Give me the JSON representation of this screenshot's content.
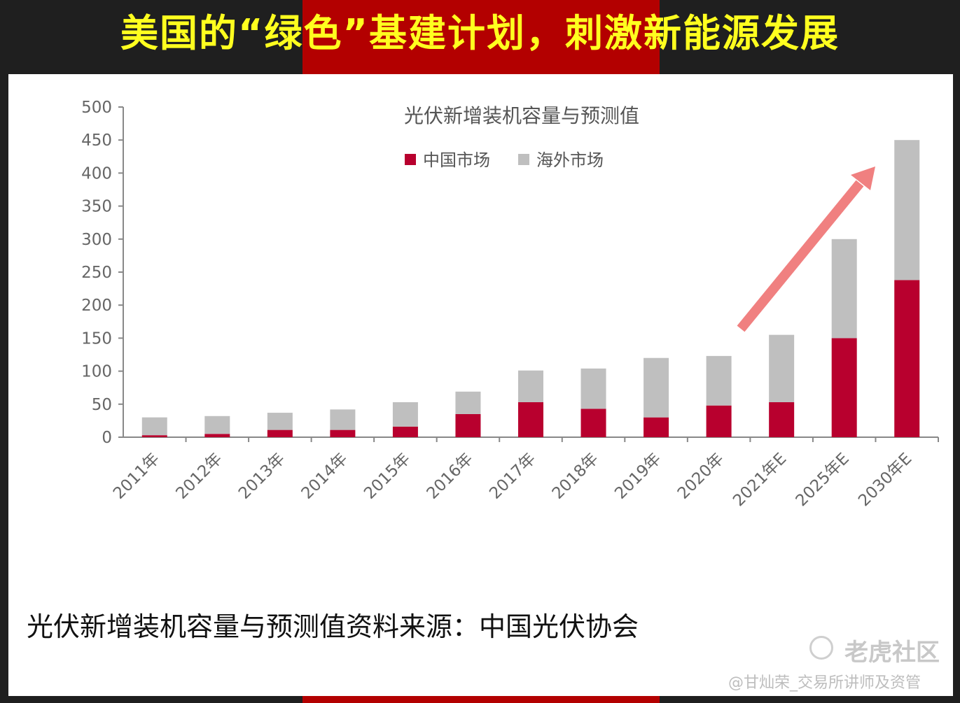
{
  "header": {
    "title": "美国的“绿色”基建计划，刺激新能源发展"
  },
  "caption": "光伏新增装机容量与预测值资料来源：中国光伏协会",
  "watermark": {
    "logo_text": "老虎社区",
    "author": "@甘灿荣_交易所讲师及资管"
  },
  "colors": {
    "china": "#b8002e",
    "overseas": "#bfbfbf",
    "arrow": "#f08080",
    "axis": "#888888"
  },
  "chart_data": {
    "type": "bar",
    "stacked": true,
    "title": "光伏新增装机容量与预测值",
    "categories": [
      "2011年",
      "2012年",
      "2013年",
      "2014年",
      "2015年",
      "2016年",
      "2017年",
      "2018年",
      "2019年",
      "2020年",
      "2021年E",
      "2025年E",
      "2030年E"
    ],
    "series": [
      {
        "name": "中国市场",
        "values": [
          3,
          5,
          11,
          11,
          16,
          35,
          53,
          43,
          30,
          48,
          53,
          150,
          238
        ]
      },
      {
        "name": "海外市场",
        "values": [
          27,
          27,
          26,
          31,
          37,
          34,
          48,
          61,
          90,
          75,
          102,
          150,
          212
        ]
      }
    ],
    "yticks": [
      0,
      50,
      100,
      150,
      200,
      250,
      300,
      350,
      400,
      450,
      500
    ],
    "ylim": [
      0,
      500
    ],
    "legend_position": "top",
    "grid": false
  }
}
